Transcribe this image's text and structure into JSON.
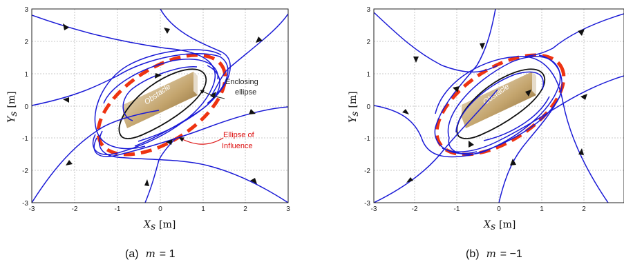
{
  "panels": [
    {
      "id": "a",
      "caption_letter": "(a)",
      "caption_eq_lhs": "m",
      "caption_eq_rhs": "= 1",
      "obstacle_label": "Obstacle",
      "annotations": [
        {
          "line1": "Enclosing",
          "line2": "ellipse",
          "color": "#222222"
        },
        {
          "line1": "Ellipse of",
          "line2": "Influence",
          "color": "#dd1111"
        }
      ]
    },
    {
      "id": "b",
      "caption_letter": "(b)",
      "caption_eq_lhs": "m",
      "caption_eq_rhs": "= −1",
      "obstacle_label": "Obstacle",
      "annotations": []
    }
  ],
  "axes": {
    "xlabel_main": "X",
    "xlabel_sub": "s",
    "xlabel_unit": "[m]",
    "ylabel_main": "Y",
    "ylabel_sub": "s",
    "ylabel_unit": "[m]",
    "xticks_a": [
      "-3",
      "-2",
      "-1",
      "0",
      "1",
      "2",
      "3"
    ],
    "xticks_b": [
      "-3",
      "-2",
      "-1",
      "0",
      "1",
      "2"
    ],
    "yticks": [
      "3",
      "2",
      "1",
      "0",
      "-1",
      "-2",
      "-3"
    ],
    "xlim": [
      -3,
      3
    ],
    "ylim": [
      -3,
      3
    ],
    "grid": true
  },
  "colors": {
    "trajectory": "#1a1ad6",
    "influence_ellipse": "#ee3311",
    "enclosing_ellipse": "#111111",
    "obstacle_light": "#f4ecdc",
    "obstacle_dark": "#8a6a35"
  }
}
